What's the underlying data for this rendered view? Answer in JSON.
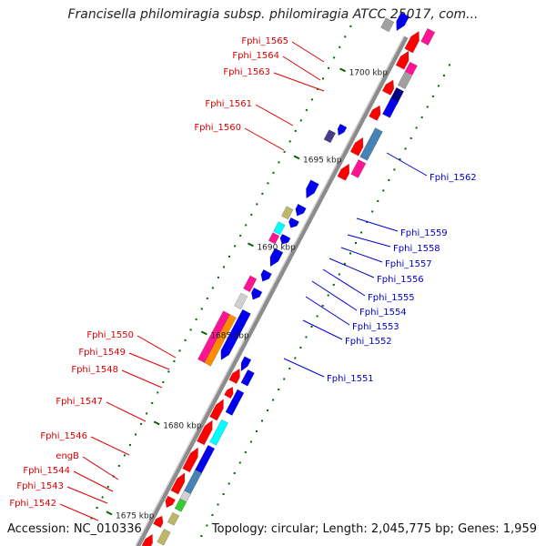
{
  "title": "Francisella philomiragia subsp. philomiragia ATCC 25017, com...",
  "footer": {
    "accession": "Accession: NC_010336",
    "summary": "Topology: circular; Length: 2,045,775 bp; Genes: 1,959"
  },
  "scale_labels": [
    "1700 kbp",
    "1695 kbp",
    "1690 kbp",
    "1685 kbp",
    "1680 kbp",
    "1675 kbp"
  ],
  "colors": {
    "red": "#ff0000",
    "blue": "#0000ee",
    "navy": "#000080",
    "steel": "#4682b4",
    "pink": "#ff1493",
    "cyan": "#00ffff",
    "khaki": "#bdb76b",
    "gray": "#a0a0a0",
    "silver": "#d0d0d0",
    "green": "#33cc33",
    "orange": "#ff8c00",
    "slate": "#483d8b",
    "tick": "#006400",
    "label_left": "#dd0000",
    "label_right": "#0000cc",
    "backbone": "#8c8c8c"
  },
  "genes_left": [
    {
      "label": "Fphi_1565"
    },
    {
      "label": "Fphi_1564"
    },
    {
      "label": "Fphi_1563"
    },
    {
      "label": "Fphi_1561"
    },
    {
      "label": "Fphi_1560"
    },
    {
      "label": "Fphi_1550"
    },
    {
      "label": "Fphi_1549"
    },
    {
      "label": "Fphi_1548"
    },
    {
      "label": "Fphi_1547"
    },
    {
      "label": "Fphi_1546"
    },
    {
      "label": "engB"
    },
    {
      "label": "Fphi_1544"
    },
    {
      "label": "Fphi_1543"
    },
    {
      "label": "Fphi_1542"
    }
  ],
  "genes_right": [
    {
      "label": "Fphi_1562"
    },
    {
      "label": "Fphi_1559"
    },
    {
      "label": "Fphi_1558"
    },
    {
      "label": "Fphi_1557"
    },
    {
      "label": "Fphi_1556"
    },
    {
      "label": "Fphi_1555"
    },
    {
      "label": "Fphi_1554"
    },
    {
      "label": "Fphi_1553"
    },
    {
      "label": "Fphi_1552"
    },
    {
      "label": "Fphi_1551"
    }
  ]
}
